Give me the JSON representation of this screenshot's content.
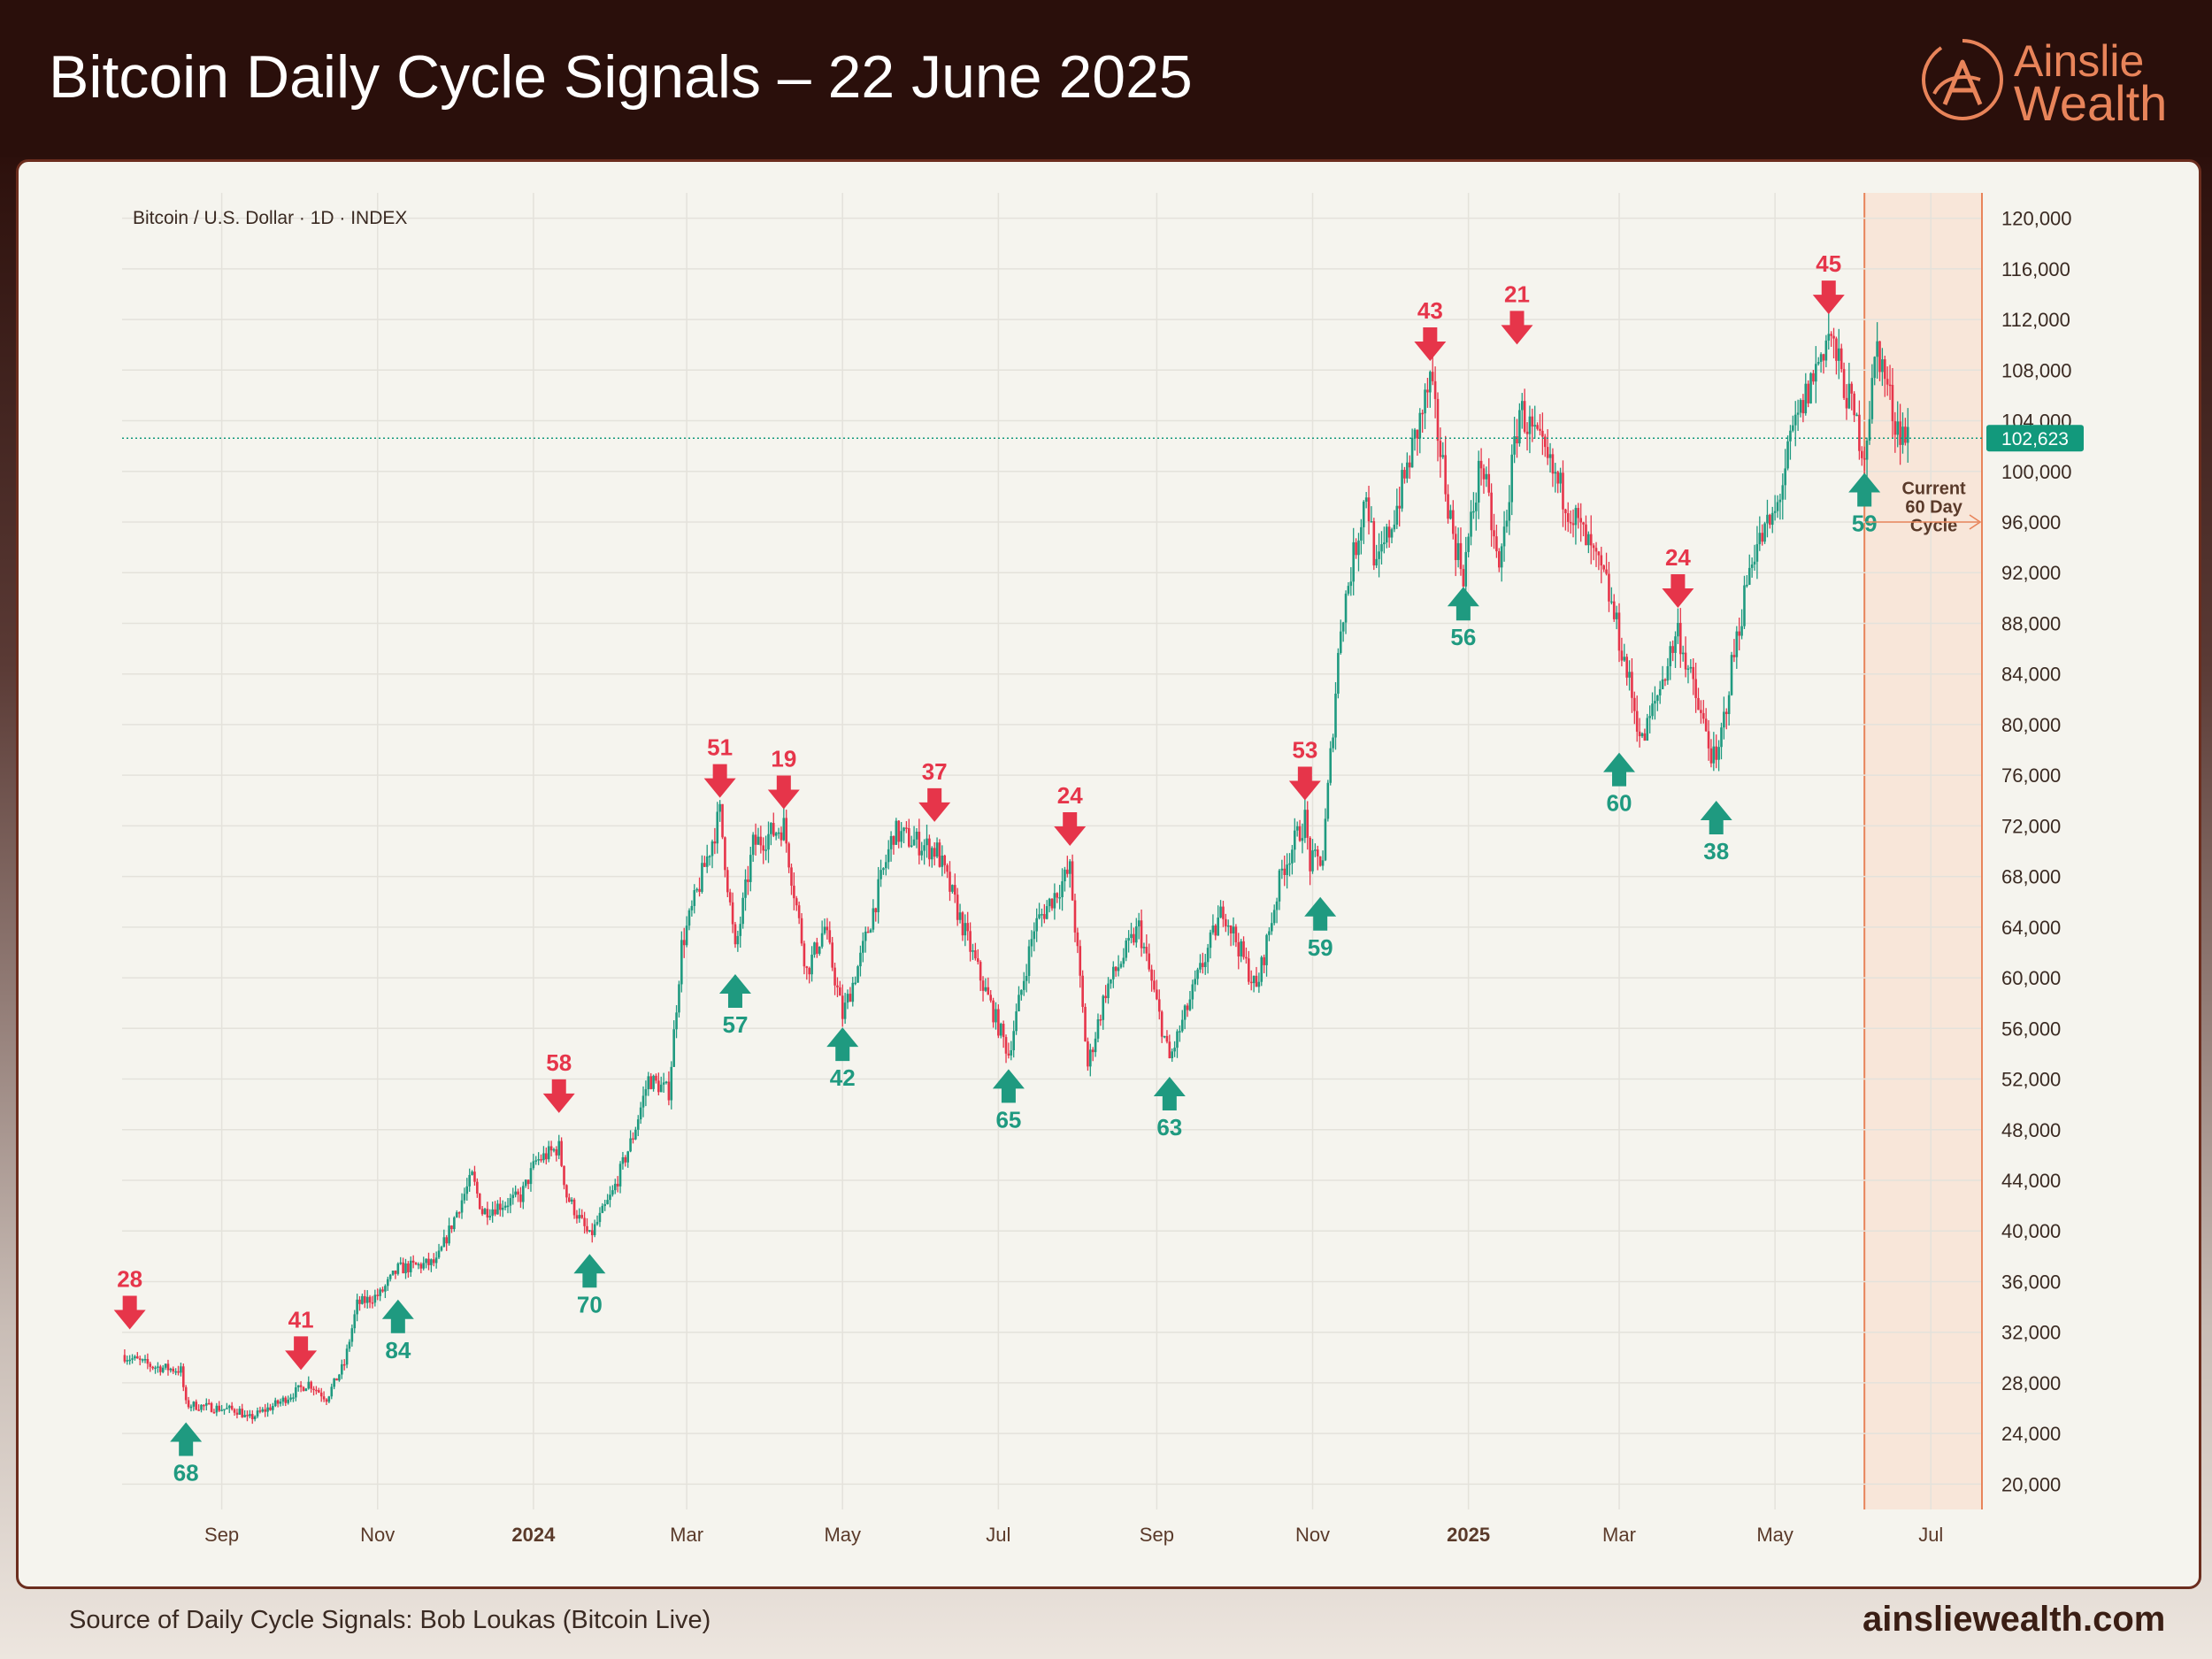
{
  "header": {
    "title": "Bitcoin Daily Cycle Signals – 22 June 2025"
  },
  "logo": {
    "line1": "Ainslie",
    "line2": "Wealth",
    "icon": "ainslie-a-icon"
  },
  "footer": {
    "source": "Source of Daily Cycle Signals: Bob Loukas (Bitcoin Live)",
    "site": "ainsliewealth.com"
  },
  "colors": {
    "up": "#1f9a80",
    "down": "#e6354a",
    "accent": "#e8845a",
    "price_tag": "#12997c"
  },
  "chart_data": {
    "type": "candlestick",
    "symbol_label": "Bitcoin / U.S. Dollar · 1D · INDEX",
    "ylim": [
      18000,
      122000
    ],
    "y_ticks": [
      20000,
      24000,
      28000,
      32000,
      36000,
      40000,
      44000,
      48000,
      52000,
      56000,
      60000,
      64000,
      68000,
      72000,
      76000,
      80000,
      84000,
      88000,
      92000,
      96000,
      100000,
      104000,
      108000,
      112000,
      116000,
      120000
    ],
    "y_tick_labels": [
      "20,000",
      "24,000",
      "28,000",
      "32,000",
      "36,000",
      "40,000",
      "44,000",
      "48,000",
      "52,000",
      "56,000",
      "60,000",
      "64,000",
      "68,000",
      "72,000",
      "76,000",
      "80,000",
      "84,000",
      "88,000",
      "92,000",
      "96,000",
      "100,000",
      "104,000",
      "108,000",
      "112,000",
      "116,000",
      "120,000"
    ],
    "x_start": "2023-07-24",
    "x_end": "2025-07-21",
    "x_ticks": [
      {
        "date": "2023-09-01",
        "label": "Sep",
        "bold": false
      },
      {
        "date": "2023-11-01",
        "label": "Nov",
        "bold": false
      },
      {
        "date": "2024-01-01",
        "label": "2024",
        "bold": true
      },
      {
        "date": "2024-03-01",
        "label": "Mar",
        "bold": false
      },
      {
        "date": "2024-05-01",
        "label": "May",
        "bold": false
      },
      {
        "date": "2024-07-01",
        "label": "Jul",
        "bold": false
      },
      {
        "date": "2024-09-01",
        "label": "Sep",
        "bold": false
      },
      {
        "date": "2024-11-01",
        "label": "Nov",
        "bold": false
      },
      {
        "date": "2025-01-01",
        "label": "2025",
        "bold": true
      },
      {
        "date": "2025-03-01",
        "label": "Mar",
        "bold": false
      },
      {
        "date": "2025-05-01",
        "label": "May",
        "bold": false
      },
      {
        "date": "2025-07-01",
        "label": "Jul",
        "bold": false
      }
    ],
    "price_path": [
      [
        "2023-07-24",
        30200
      ],
      [
        "2023-08-05",
        29300
      ],
      [
        "2023-08-16",
        29000
      ],
      [
        "2023-08-18",
        26300
      ],
      [
        "2023-09-08",
        25800
      ],
      [
        "2023-09-11",
        25100
      ],
      [
        "2023-09-24",
        26500
      ],
      [
        "2023-10-05",
        28000
      ],
      [
        "2023-10-12",
        26800
      ],
      [
        "2023-10-19",
        29500
      ],
      [
        "2023-10-24",
        34200
      ],
      [
        "2023-11-02",
        35000
      ],
      [
        "2023-11-09",
        37000
      ],
      [
        "2023-11-24",
        37500
      ],
      [
        "2023-12-03",
        42000
      ],
      [
        "2023-12-08",
        44300
      ],
      [
        "2023-12-12",
        41500
      ],
      [
        "2023-12-27",
        42700
      ],
      [
        "2024-01-02",
        45500
      ],
      [
        "2024-01-11",
        46600
      ],
      [
        "2024-01-14",
        42800
      ],
      [
        "2024-01-23",
        39500
      ],
      [
        "2024-02-01",
        43000
      ],
      [
        "2024-02-09",
        47500
      ],
      [
        "2024-02-15",
        52000
      ],
      [
        "2024-02-23",
        51000
      ],
      [
        "2024-02-28",
        62500
      ],
      [
        "2024-03-14",
        73000
      ],
      [
        "2024-03-20",
        62000
      ],
      [
        "2024-03-27",
        70500
      ],
      [
        "2024-04-08",
        72000
      ],
      [
        "2024-04-17",
        60500
      ],
      [
        "2024-04-24",
        64000
      ],
      [
        "2024-05-01",
        57000
      ],
      [
        "2024-05-08",
        61500
      ],
      [
        "2024-05-21",
        71500
      ],
      [
        "2024-06-07",
        70000
      ],
      [
        "2024-06-24",
        60000
      ],
      [
        "2024-07-05",
        54000
      ],
      [
        "2024-07-15",
        64000
      ],
      [
        "2024-07-29",
        68500
      ],
      [
        "2024-08-05",
        53000
      ],
      [
        "2024-08-12",
        59000
      ],
      [
        "2024-08-25",
        64000
      ],
      [
        "2024-09-06",
        53500
      ],
      [
        "2024-09-17",
        60000
      ],
      [
        "2024-09-27",
        65500
      ],
      [
        "2024-10-10",
        59000
      ],
      [
        "2024-10-20",
        68500
      ],
      [
        "2024-10-29",
        72500
      ],
      [
        "2024-10-31",
        69000
      ],
      [
        "2024-11-05",
        69500
      ],
      [
        "2024-11-12",
        88000
      ],
      [
        "2024-11-22",
        98500
      ],
      [
        "2024-11-26",
        92000
      ],
      [
        "2024-12-05",
        98000
      ],
      [
        "2024-12-17",
        107000
      ],
      [
        "2024-12-26",
        95000
      ],
      [
        "2024-12-30",
        92000
      ],
      [
        "2025-01-06",
        101000
      ],
      [
        "2025-01-13",
        92000
      ],
      [
        "2025-01-21",
        105000
      ],
      [
        "2025-01-31",
        101000
      ],
      [
        "2025-02-10",
        97000
      ],
      [
        "2025-02-24",
        91000
      ],
      [
        "2025-03-02",
        86000
      ],
      [
        "2025-03-10",
        78500
      ],
      [
        "2025-03-24",
        87500
      ],
      [
        "2025-03-31",
        82000
      ],
      [
        "2025-04-08",
        76500
      ],
      [
        "2025-04-14",
        84500
      ],
      [
        "2025-04-22",
        93500
      ],
      [
        "2025-05-01",
        96500
      ],
      [
        "2025-05-08",
        103000
      ],
      [
        "2025-05-22",
        111000
      ],
      [
        "2025-06-05",
        101500
      ],
      [
        "2025-06-10",
        110000
      ],
      [
        "2025-06-17",
        104000
      ],
      [
        "2025-06-22",
        102600
      ]
    ],
    "signals": [
      {
        "type": "top",
        "date": "2023-07-27",
        "value": 31800,
        "label": "28"
      },
      {
        "type": "low",
        "date": "2023-08-18",
        "value": 25300,
        "label": "68"
      },
      {
        "type": "top",
        "date": "2023-10-02",
        "value": 28600,
        "label": "41"
      },
      {
        "type": "low",
        "date": "2023-11-09",
        "value": 35000,
        "label": "84"
      },
      {
        "type": "top",
        "date": "2024-01-11",
        "value": 48900,
        "label": "58"
      },
      {
        "type": "low",
        "date": "2024-01-23",
        "value": 38600,
        "label": "70"
      },
      {
        "type": "top",
        "date": "2024-03-14",
        "value": 73800,
        "label": "51"
      },
      {
        "type": "low",
        "date": "2024-03-20",
        "value": 60700,
        "label": "57"
      },
      {
        "type": "top",
        "date": "2024-04-08",
        "value": 72900,
        "label": "19"
      },
      {
        "type": "low",
        "date": "2024-05-01",
        "value": 56500,
        "label": "42"
      },
      {
        "type": "top",
        "date": "2024-06-06",
        "value": 71900,
        "label": "37"
      },
      {
        "type": "low",
        "date": "2024-07-05",
        "value": 53200,
        "label": "65"
      },
      {
        "type": "top",
        "date": "2024-07-29",
        "value": 70000,
        "label": "24"
      },
      {
        "type": "low",
        "date": "2024-09-06",
        "value": 52600,
        "label": "63"
      },
      {
        "type": "top",
        "date": "2024-10-29",
        "value": 73600,
        "label": "53"
      },
      {
        "type": "low",
        "date": "2024-11-04",
        "value": 66800,
        "label": "59"
      },
      {
        "type": "top",
        "date": "2024-12-17",
        "value": 108300,
        "label": "43"
      },
      {
        "type": "low",
        "date": "2024-12-30",
        "value": 91300,
        "label": "56"
      },
      {
        "type": "top",
        "date": "2025-01-20",
        "value": 109600,
        "label": "21"
      },
      {
        "type": "low",
        "date": "2025-03-01",
        "value": 78200,
        "label": "60"
      },
      {
        "type": "top",
        "date": "2025-03-24",
        "value": 88800,
        "label": "24"
      },
      {
        "type": "low",
        "date": "2025-04-08",
        "value": 74400,
        "label": "38"
      },
      {
        "type": "top",
        "date": "2025-05-22",
        "value": 112000,
        "label": "45"
      },
      {
        "type": "low",
        "date": "2025-06-05",
        "value": 100300,
        "label": "59"
      }
    ],
    "current_price": 102623,
    "current_price_label": "102,623",
    "cycle_zone": {
      "start": "2025-06-05",
      "end": "2025-07-21",
      "label_lines": [
        "Current",
        "60 Day",
        "Cycle"
      ]
    }
  }
}
